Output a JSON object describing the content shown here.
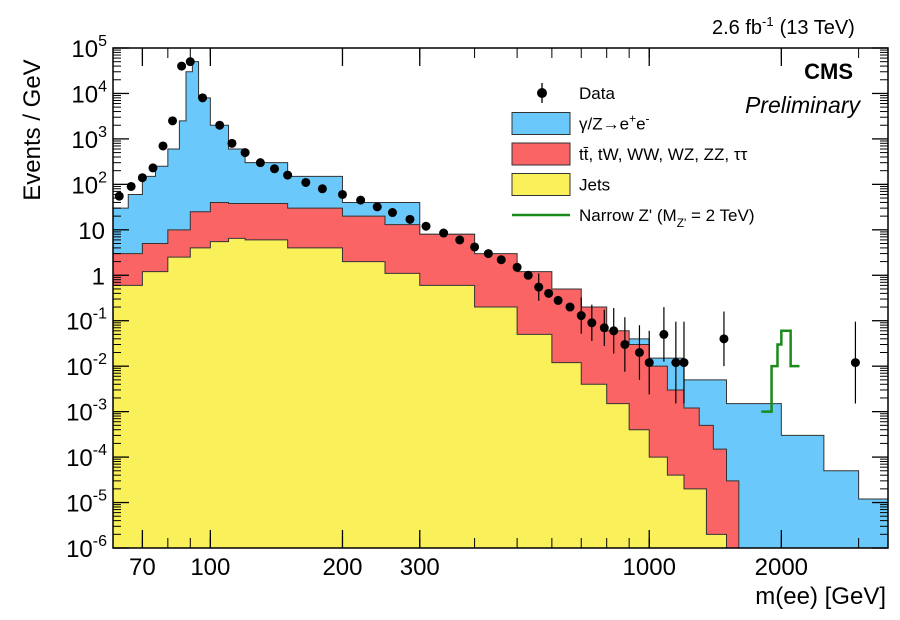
{
  "header": {
    "lumi_label": "2.6 fb",
    "lumi_sup": "-1",
    "energy_label": "(13 TeV)",
    "experiment": "CMS",
    "status": "Preliminary"
  },
  "chart_data": {
    "type": "histogram",
    "xlabel": "m(ee) [GeV]",
    "ylabel": "Events / GeV",
    "x_scale": "log",
    "y_scale": "log",
    "xlim": [
      60,
      3500
    ],
    "ylim": [
      1e-06,
      100000.0
    ],
    "x_ticks": [
      70,
      100,
      200,
      300,
      1000,
      2000
    ],
    "x_tick_labels": [
      "70",
      "100",
      "200",
      "300",
      "1000",
      "2000"
    ],
    "y_ticks": [
      1e-06,
      1e-05,
      0.0001,
      0.001,
      0.01,
      0.1,
      1,
      10,
      100,
      1000,
      10000,
      100000
    ],
    "y_tick_labels": [
      {
        "base": "10",
        "exp": "-6"
      },
      {
        "base": "10",
        "exp": "-5"
      },
      {
        "base": "10",
        "exp": "-4"
      },
      {
        "base": "10",
        "exp": "-3"
      },
      {
        "base": "10",
        "exp": "-2"
      },
      {
        "base": "10",
        "exp": "-1"
      },
      {
        "base": "1",
        "exp": ""
      },
      {
        "base": "10",
        "exp": ""
      },
      {
        "base": "10",
        "exp": "2"
      },
      {
        "base": "10",
        "exp": "3"
      },
      {
        "base": "10",
        "exp": "4"
      },
      {
        "base": "10",
        "exp": "5"
      }
    ],
    "legend_position": "top-right",
    "legend": [
      {
        "key": "data",
        "label": "Data",
        "style": "marker"
      },
      {
        "key": "dy",
        "label_parts": [
          "γ/Z→e",
          "+",
          "e",
          "-"
        ],
        "style": "fill"
      },
      {
        "key": "ttbar",
        "label": "tt̄, tW, WW, WZ, ZZ, ττ",
        "style": "fill"
      },
      {
        "key": "jets",
        "label": "Jets",
        "style": "fill"
      },
      {
        "key": "zprime",
        "label_parts": [
          "Narrow Z' (M",
          "Z'",
          " = 2 TeV)"
        ],
        "style": "line"
      }
    ],
    "colors": {
      "dy": "#6ac8fa",
      "ttbar": "#fa6464",
      "jets": "#faf05a",
      "zprime": "#1a8a1a",
      "data": "#000000"
    },
    "series": [
      {
        "key": "jets",
        "values_at_edges": [
          [
            60,
            0.6
          ],
          [
            70,
            1.2
          ],
          [
            80,
            2.5
          ],
          [
            90,
            4.0
          ],
          [
            100,
            5.5
          ],
          [
            110,
            6.5
          ],
          [
            120,
            6.0
          ],
          [
            150,
            4.0
          ],
          [
            200,
            2.0
          ],
          [
            250,
            1.1
          ],
          [
            300,
            0.6
          ],
          [
            400,
            0.2
          ],
          [
            500,
            0.05
          ],
          [
            600,
            0.012
          ],
          [
            700,
            0.004
          ],
          [
            800,
            0.0015
          ],
          [
            900,
            0.0004
          ],
          [
            1000,
            0.0001
          ],
          [
            1100,
            4e-05
          ],
          [
            1200,
            2e-05
          ],
          [
            1350,
            2e-06
          ],
          [
            1500,
            1e-06
          ]
        ]
      },
      {
        "key": "ttbar",
        "values_at_edges": [
          [
            60,
            3.0
          ],
          [
            70,
            5.0
          ],
          [
            80,
            10
          ],
          [
            90,
            25
          ],
          [
            100,
            40
          ],
          [
            110,
            38
          ],
          [
            150,
            30
          ],
          [
            200,
            20
          ],
          [
            250,
            13
          ],
          [
            300,
            8
          ],
          [
            400,
            3
          ],
          [
            500,
            1.2
          ],
          [
            600,
            0.5
          ],
          [
            700,
            0.2
          ],
          [
            800,
            0.06
          ],
          [
            900,
            0.03
          ],
          [
            1000,
            0.01
          ],
          [
            1100,
            0.003
          ],
          [
            1200,
            0.0012
          ],
          [
            1300,
            0.0005
          ],
          [
            1400,
            0.00015
          ],
          [
            1500,
            3e-05
          ],
          [
            1600,
            1e-06
          ]
        ]
      },
      {
        "key": "dy",
        "values_at_edges": [
          [
            60,
            30
          ],
          [
            65,
            60
          ],
          [
            70,
            150
          ],
          [
            75,
            250
          ],
          [
            80,
            600
          ],
          [
            85,
            2500
          ],
          [
            88,
            30000
          ],
          [
            91,
            50000
          ],
          [
            94,
            8000
          ],
          [
            100,
            2000
          ],
          [
            110,
            600
          ],
          [
            120,
            300
          ],
          [
            150,
            150
          ],
          [
            200,
            40
          ],
          [
            300,
            8
          ],
          [
            400,
            2
          ],
          [
            500,
            0.5
          ],
          [
            600,
            0.2
          ],
          [
            700,
            0.08
          ],
          [
            800,
            0.04
          ],
          [
            1000,
            0.015
          ],
          [
            1200,
            0.005
          ],
          [
            1500,
            0.0015
          ],
          [
            2000,
            0.0003
          ],
          [
            2500,
            5e-05
          ],
          [
            3000,
            1.2e-05
          ],
          [
            3500,
            2e-06
          ]
        ]
      },
      {
        "key": "zprime",
        "x": [
          1800,
          1900,
          1960,
          2000,
          2050,
          2100,
          2200
        ],
        "y": [
          0.001,
          0.01,
          0.03,
          0.06,
          0.06,
          0.01,
          0.001
        ]
      }
    ],
    "data": [
      {
        "x": 62,
        "y": 55,
        "err": 0
      },
      {
        "x": 66,
        "y": 90,
        "err": 0
      },
      {
        "x": 70,
        "y": 140,
        "err": 0
      },
      {
        "x": 74,
        "y": 230,
        "err": 0
      },
      {
        "x": 78,
        "y": 700,
        "err": 0
      },
      {
        "x": 82,
        "y": 2500,
        "err": 0
      },
      {
        "x": 86,
        "y": 40000,
        "err": 0
      },
      {
        "x": 90,
        "y": 50000,
        "err": 0
      },
      {
        "x": 96,
        "y": 8000,
        "err": 0
      },
      {
        "x": 105,
        "y": 2000,
        "err": 0
      },
      {
        "x": 112,
        "y": 800,
        "err": 0
      },
      {
        "x": 120,
        "y": 500,
        "err": 0
      },
      {
        "x": 130,
        "y": 300,
        "err": 0
      },
      {
        "x": 140,
        "y": 220,
        "err": 0
      },
      {
        "x": 150,
        "y": 160,
        "err": 0
      },
      {
        "x": 165,
        "y": 110,
        "err": 0
      },
      {
        "x": 180,
        "y": 80,
        "err": 0
      },
      {
        "x": 200,
        "y": 60,
        "err": 0
      },
      {
        "x": 220,
        "y": 45,
        "err": 0
      },
      {
        "x": 240,
        "y": 32,
        "err": 0
      },
      {
        "x": 260,
        "y": 24,
        "err": 0
      },
      {
        "x": 285,
        "y": 17,
        "err": 0
      },
      {
        "x": 310,
        "y": 12,
        "err": 0
      },
      {
        "x": 340,
        "y": 8.5,
        "err": 0
      },
      {
        "x": 370,
        "y": 6,
        "err": 0
      },
      {
        "x": 400,
        "y": 4.2,
        "err": 0
      },
      {
        "x": 430,
        "y": 3,
        "err": 0
      },
      {
        "x": 460,
        "y": 2.2,
        "err": 0
      },
      {
        "x": 500,
        "y": 1.5,
        "err": 0
      },
      {
        "x": 530,
        "y": 1.0,
        "err": 0
      },
      {
        "x": 560,
        "y": 0.55,
        "err": 0.3
      },
      {
        "x": 590,
        "y": 0.4,
        "err": 0
      },
      {
        "x": 620,
        "y": 0.28,
        "err": 0
      },
      {
        "x": 660,
        "y": 0.2,
        "err": 0
      },
      {
        "x": 700,
        "y": 0.13,
        "err": 0.4
      },
      {
        "x": 740,
        "y": 0.09,
        "err": 0.4
      },
      {
        "x": 790,
        "y": 0.07,
        "err": 0.4
      },
      {
        "x": 830,
        "y": 0.06,
        "err": 0.5
      },
      {
        "x": 880,
        "y": 0.03,
        "err": 0.6
      },
      {
        "x": 950,
        "y": 0.02,
        "err": 0.6
      },
      {
        "x": 1000,
        "y": 0.012,
        "err": 0.7
      },
      {
        "x": 1080,
        "y": 0.05,
        "err": 0.6
      },
      {
        "x": 1150,
        "y": 0.012,
        "err": 0.9
      },
      {
        "x": 1200,
        "y": 0.012,
        "err": 0.9
      },
      {
        "x": 1480,
        "y": 0.04,
        "err": 0.6
      },
      {
        "x": 2950,
        "y": 0.012,
        "err": 0.9
      }
    ]
  }
}
